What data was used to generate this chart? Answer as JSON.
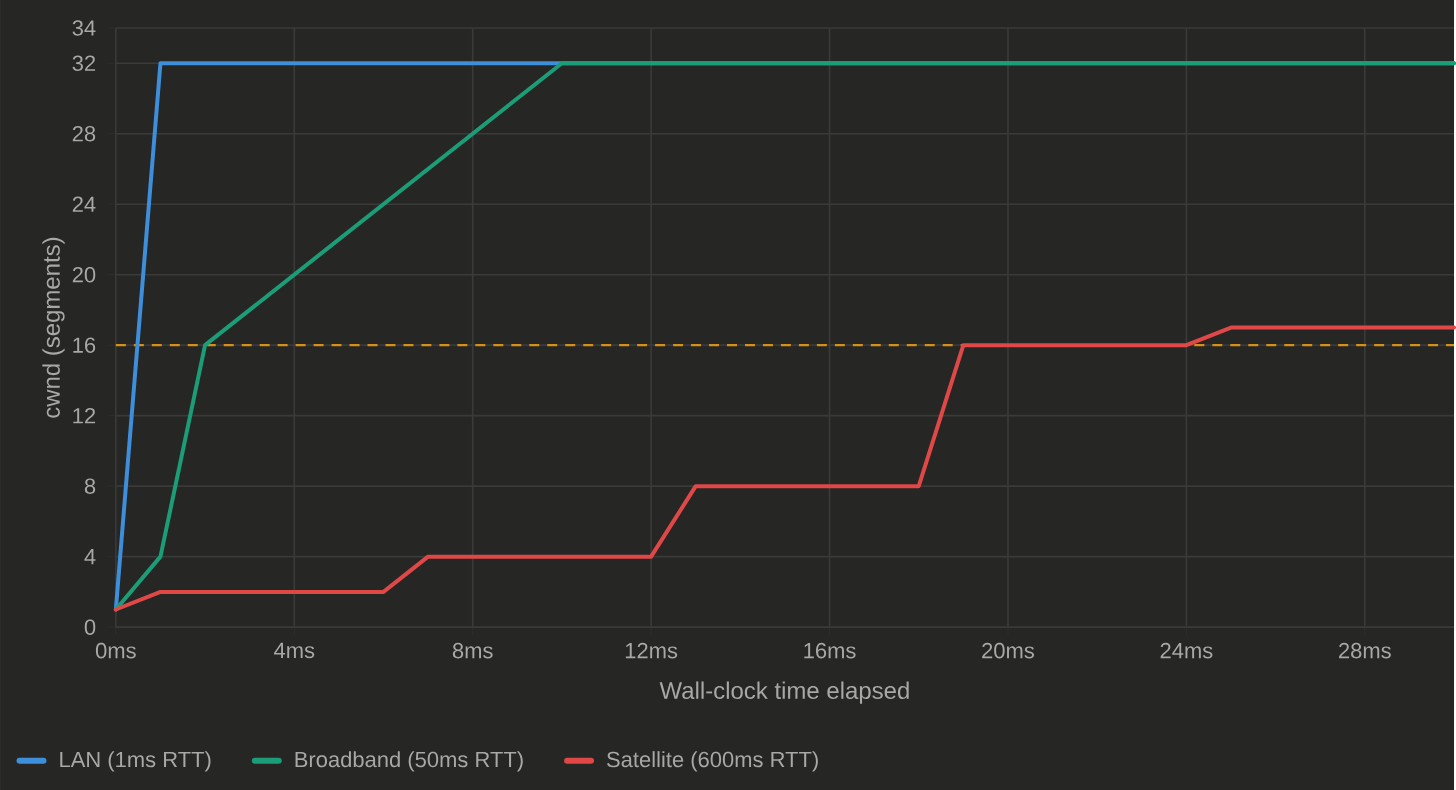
{
  "chart_data": {
    "type": "line",
    "xlabel": "Wall-clock time elapsed",
    "ylabel": "cwnd (segments)",
    "xlim": [
      0,
      30
    ],
    "ylim": [
      0,
      34
    ],
    "xticks": [
      {
        "value": 0,
        "label": "0ms"
      },
      {
        "value": 4,
        "label": "4ms"
      },
      {
        "value": 8,
        "label": "8ms"
      },
      {
        "value": 12,
        "label": "12ms"
      },
      {
        "value": 16,
        "label": "16ms"
      },
      {
        "value": 20,
        "label": "20ms"
      },
      {
        "value": 24,
        "label": "24ms"
      },
      {
        "value": 28,
        "label": "28ms"
      }
    ],
    "yticks": [
      0,
      4,
      8,
      12,
      16,
      20,
      24,
      28,
      32,
      34
    ],
    "grid": true,
    "legend": "bottom",
    "line_style": "solid",
    "ref_lines": [
      {
        "axis": "y",
        "value": 16,
        "color": "#d4901c",
        "line_style": "dashed"
      }
    ],
    "series": [
      {
        "name": "LAN (1ms RTT)",
        "color": "#3d8fdb",
        "x": [
          0,
          1,
          30
        ],
        "values": [
          1,
          32,
          32
        ]
      },
      {
        "name": "Broadband (50ms RTT)",
        "color": "#1b9e77",
        "x": [
          0,
          1,
          2,
          10,
          30
        ],
        "values": [
          1,
          4,
          16,
          32,
          32
        ]
      },
      {
        "name": "Satellite (600ms RTT)",
        "color": "#e04848",
        "x": [
          0,
          1,
          6,
          7,
          12,
          13,
          18,
          19,
          24,
          25,
          30
        ],
        "values": [
          1,
          2,
          2,
          4,
          4,
          8,
          8,
          16,
          16,
          17,
          17
        ]
      }
    ]
  }
}
